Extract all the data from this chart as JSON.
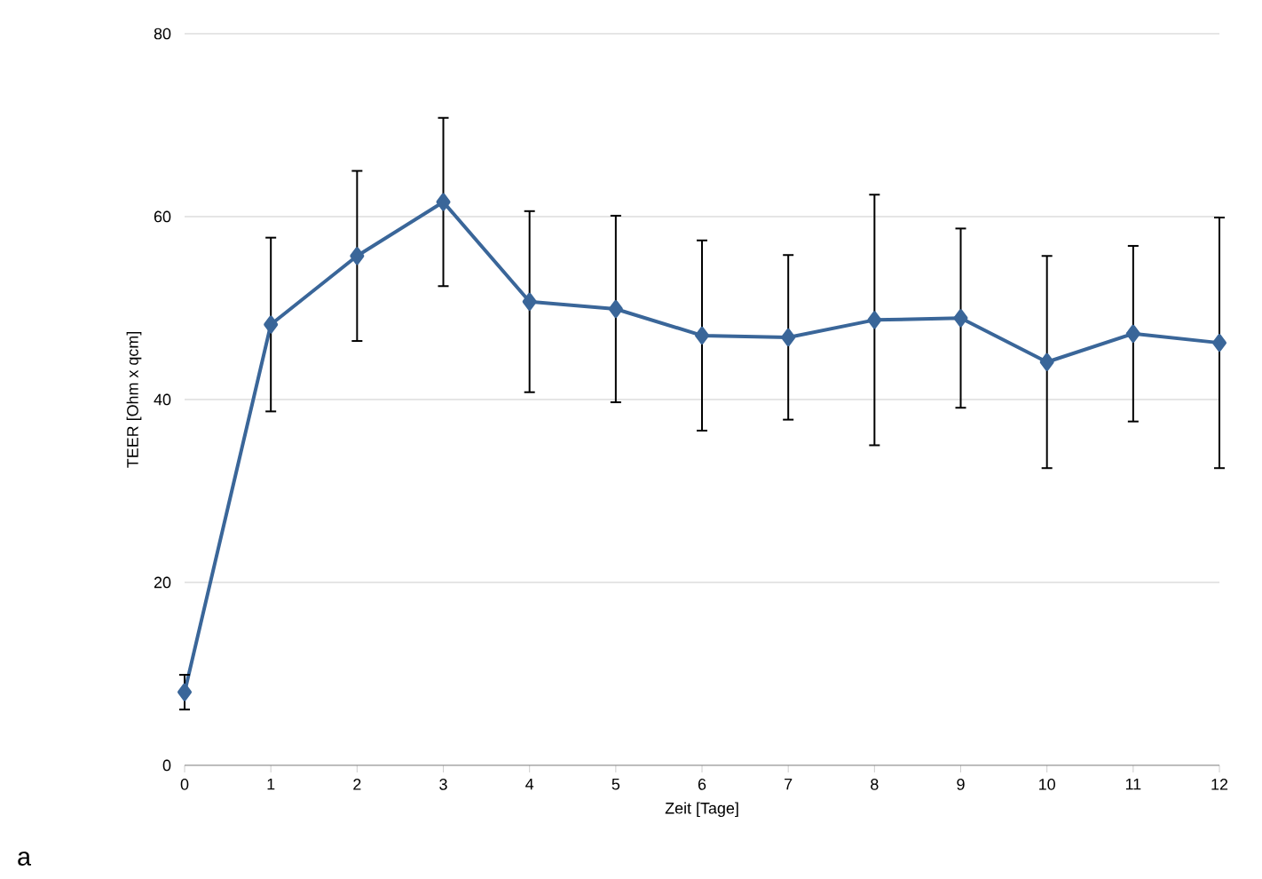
{
  "chart_data": {
    "type": "line",
    "xlabel": "Zeit [Tage]",
    "ylabel": "TEER [Ohm x qcm]",
    "x": [
      0,
      1,
      2,
      3,
      4,
      5,
      6,
      7,
      8,
      9,
      10,
      11,
      12
    ],
    "series": [
      {
        "color": "#3a6699",
        "values": [
          8.0,
          48.2,
          55.7,
          61.6,
          50.7,
          49.9,
          47.0,
          46.8,
          48.7,
          48.9,
          44.1,
          47.2,
          46.2
        ],
        "errors": [
          1.9,
          9.5,
          9.3,
          9.2,
          9.9,
          10.2,
          10.4,
          9.0,
          13.7,
          9.8,
          11.6,
          9.6,
          13.7
        ]
      }
    ],
    "xlim": [
      0,
      12
    ],
    "xticks": [
      0,
      1,
      2,
      3,
      4,
      5,
      6,
      7,
      8,
      9,
      10,
      11,
      12
    ],
    "ylim": [
      0,
      80
    ],
    "yticks": [
      0,
      20,
      40,
      60,
      80
    ],
    "grid": "y",
    "marker": "diamond",
    "line_style": "solid",
    "annotations": [
      "a"
    ]
  }
}
